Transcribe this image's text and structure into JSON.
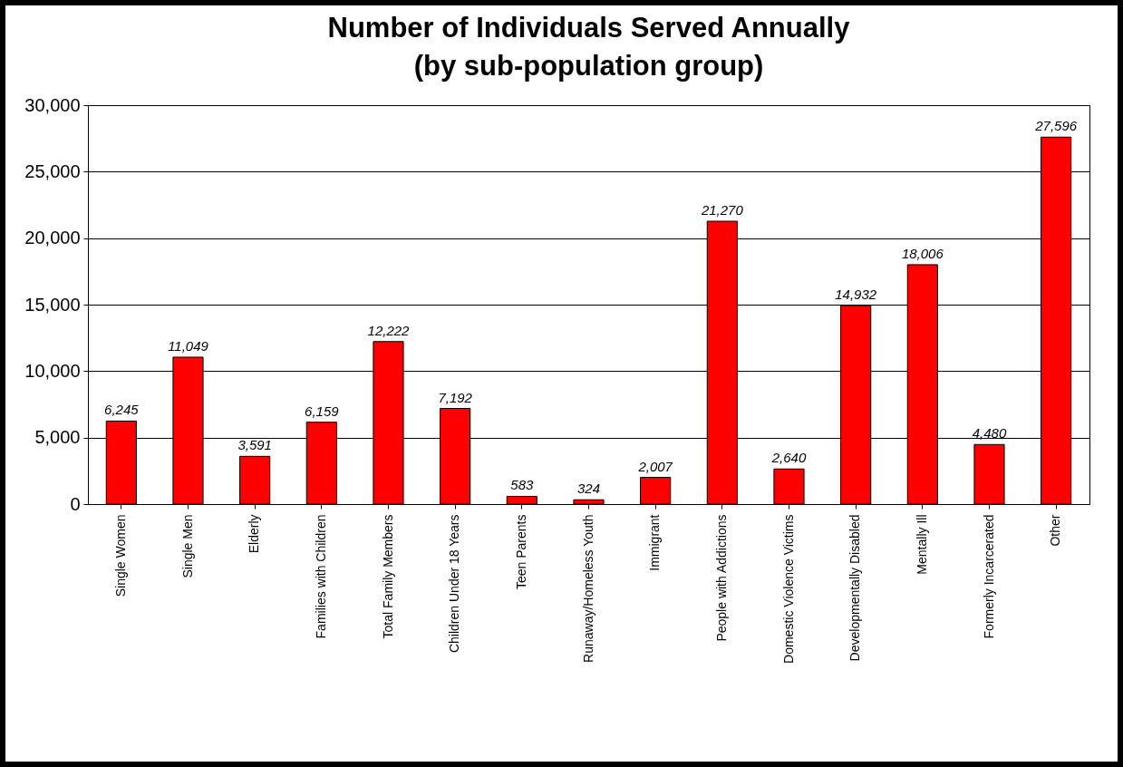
{
  "chart_data": {
    "type": "bar",
    "title": "Number of Individuals Served Annually\n(by sub-population group)",
    "categories": [
      "Single Women",
      "Single Men",
      "Elderly",
      "Families with Children",
      "Total Family Members",
      "Children Under 18 Years",
      "Teen Parents",
      "Runaway/Homeless Youth",
      "Immigrant",
      "People with Addictions",
      "Domestic Violence Victims",
      "Developmentally Disabled",
      "Mentally Ill",
      "Formerly Incarcerated",
      "Other"
    ],
    "values": [
      6245,
      11049,
      3591,
      6159,
      12222,
      7192,
      583,
      324,
      2007,
      21270,
      2640,
      14932,
      18006,
      4480,
      27596
    ],
    "color": "#ff0000",
    "value_labels": [
      "6,245",
      "11,049",
      "3,591",
      "6,159",
      "12,222",
      "7,192",
      "583",
      "324",
      "2,007",
      "21,270",
      "2,640",
      "14,932",
      "18,006",
      "4,480",
      "27,596"
    ],
    "ylim": [
      0,
      30000
    ],
    "yticks": [
      0,
      {
        "value": 5000,
        "label": "5,000"
      },
      {
        "value": 10000,
        "label": "10,000"
      },
      {
        "value": 15000,
        "label": "15,000"
      },
      {
        "value": 20000,
        "label": "20,000"
      },
      {
        "value": 25000,
        "label": "25,000"
      },
      {
        "value": 30000,
        "label": "30,000"
      }
    ],
    "grid": "y"
  }
}
